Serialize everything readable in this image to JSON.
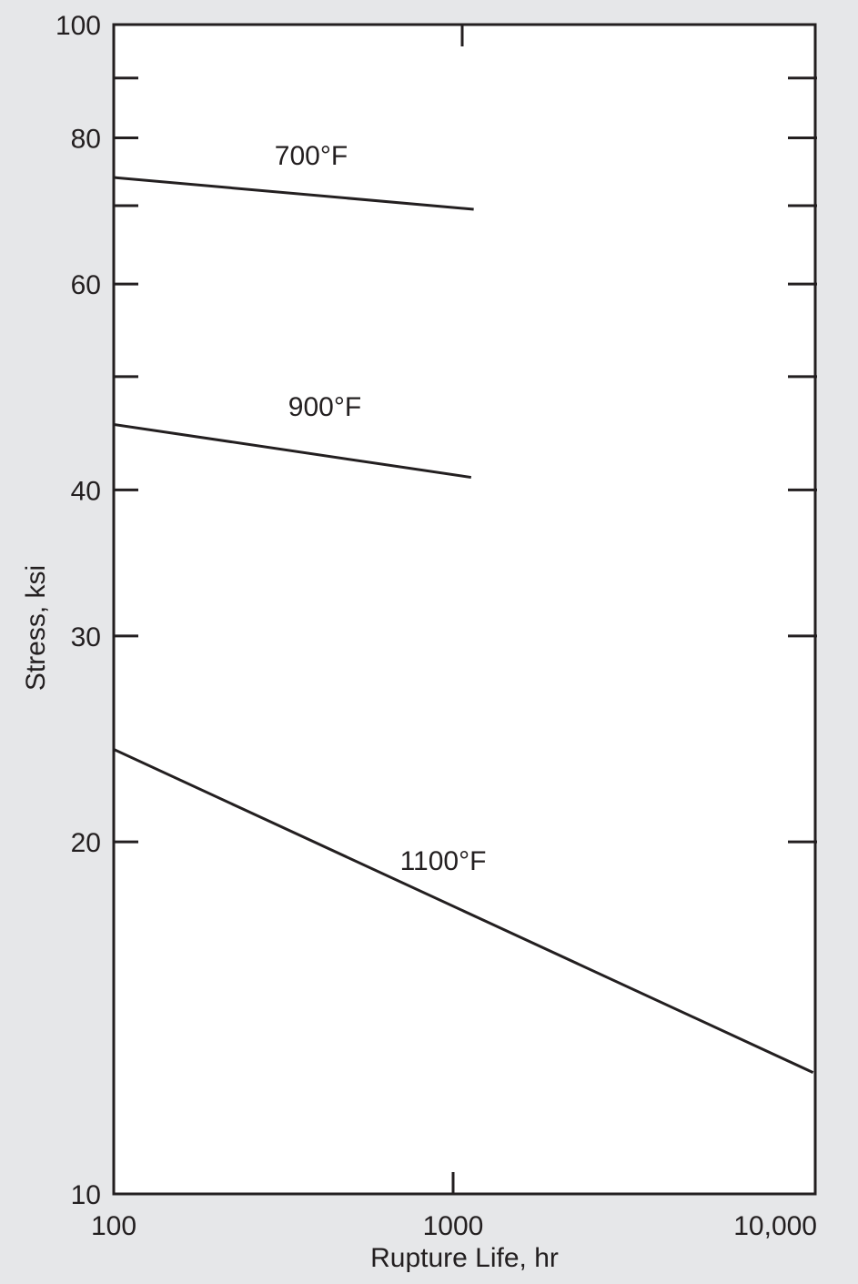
{
  "chart_data": {
    "type": "line",
    "xlabel": "Rupture Life, hr",
    "ylabel": "Stress, ksi",
    "x_scale": "log",
    "y_scale": "log",
    "xlim": [
      100,
      12000
    ],
    "ylim": [
      10,
      100
    ],
    "x_ticks": [
      100,
      1000,
      10000
    ],
    "x_tick_labels": [
      "100",
      "1000",
      "10,000"
    ],
    "y_ticks": [
      10,
      20,
      30,
      40,
      60,
      80,
      100
    ],
    "y_tick_labels": [
      "10",
      "20",
      "30",
      "40",
      "60",
      "80",
      "100"
    ],
    "y_minor_ticks_left": [
      50,
      70,
      90
    ],
    "y_ticks_right": [
      20,
      30,
      40,
      50,
      60,
      70,
      80,
      90
    ],
    "x_minor_ticks_top": [
      1000
    ],
    "grid": false,
    "series": [
      {
        "name": "700°F",
        "x": [
          100,
          1150
        ],
        "y": [
          74,
          69.5
        ]
      },
      {
        "name": "900°F",
        "x": [
          100,
          1130
        ],
        "y": [
          45.5,
          41
        ]
      },
      {
        "name": "1100°F",
        "x": [
          100,
          11500
        ],
        "y": [
          24,
          12.7
        ]
      }
    ],
    "colors": {
      "line": "#231f20",
      "background": "#e6e7e9",
      "plot_area": "#ffffff"
    }
  }
}
